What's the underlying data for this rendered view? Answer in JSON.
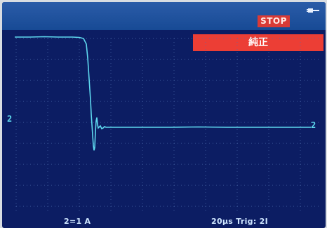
{
  "header": {
    "stop_label": "STOP",
    "status_text": "純正",
    "power_icon": "plug-icon"
  },
  "plot": {
    "channel_marker": "2",
    "trace_color": "#5fd9ef",
    "banner_color": "#ec3e35",
    "screen_color": "#0c1d63"
  },
  "footer": {
    "scale": "2=1 A",
    "timebase_trigger": "20µs Trig: 2Ⅰ"
  }
}
